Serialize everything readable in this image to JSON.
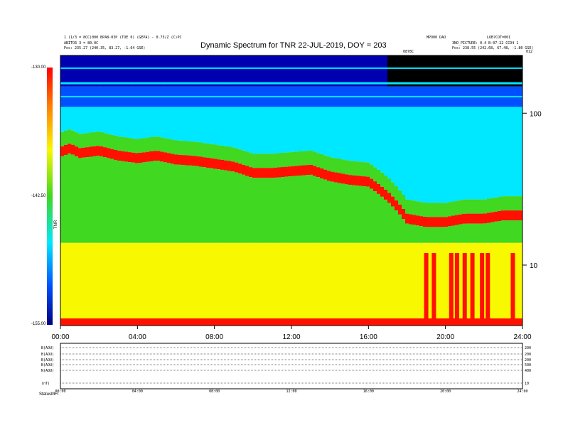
{
  "header": {
    "left_line1": "1 (1/3 = 8CC)000 BPA8-03P (TOE 0) (GEPA) - 0.75/Z (C)PC",
    "left_line2": "ABITO3 3 = 80.0C",
    "left_line3": "Pos:     235.27 (240.35, 83.27, -1.64 GSE)",
    "right_line1": "MPO00 DAO",
    "right_line2": "3NO_PICTURE: 0.4 B-07-22 CCD4 1",
    "right_line3": "Pos:     238.55 (242.68, 67.48, -1.80 GSE)",
    "right_top": "LOB?COT=001",
    "center_small": "0878C",
    "far_right_small": "012"
  },
  "chart_data": {
    "type": "heatmap",
    "title": "Dynamic Spectrum for TNR 22-JUL-2019, DOY = 203",
    "xlabel": "",
    "ylabel": "",
    "x_ticks": [
      "00:00",
      "04:00",
      "08:00",
      "12:00",
      "16:00",
      "20:00",
      "24:00"
    ],
    "xlim": [
      0,
      24
    ],
    "y_scale": "log",
    "y_ticks": [
      10,
      100
    ],
    "ylim": [
      4,
      240
    ],
    "colorbar": {
      "label": "TNR",
      "ticks": [
        "-130.00",
        "-142.50",
        "-155.00"
      ],
      "range": [
        -155,
        -130
      ]
    },
    "colors": {
      "low": "#0000b0",
      "blue": "#0050ff",
      "cyan": "#00e8ff",
      "green": "#40d820",
      "yellow": "#f8f800",
      "red": "#ff1000",
      "empty": "#000000"
    },
    "plasma_line_hours": [
      0,
      0.5,
      1,
      2,
      3,
      4,
      5,
      6,
      7,
      8,
      9,
      10,
      11,
      12,
      13,
      14,
      15,
      16,
      17,
      17.5,
      18,
      19,
      20,
      21,
      22,
      23,
      24
    ],
    "plasma_line_khz": [
      55,
      58,
      54,
      56,
      52,
      50,
      52,
      49,
      48,
      46,
      44,
      40,
      40,
      41,
      42,
      38,
      36,
      35,
      28,
      24,
      20,
      19,
      19,
      20,
      20,
      21,
      21
    ],
    "bursts_hours": [
      19.0,
      19.4,
      20.3,
      20.6,
      21.0,
      21.4,
      21.9,
      22.2,
      23.5
    ],
    "bottom_panel": {
      "rows": [
        {
          "label": "B(AOU)",
          "value_label": "200"
        },
        {
          "label": "B(AOU)",
          "value_label": "200"
        },
        {
          "label": "B(AOU)",
          "value_label": "200"
        },
        {
          "label": "B(AOU)",
          "value_label": "500"
        },
        {
          "label": "N(AOU)",
          "value_label": "400"
        },
        {
          "label": "(nT)",
          "value_label": "10"
        }
      ],
      "x_ticks": [
        "00:00",
        "04:00",
        "08:00",
        "12:00",
        "16:00",
        "20:00",
        "24:00"
      ],
      "footer_labels": [
        "Status:",
        "MFI"
      ]
    }
  }
}
